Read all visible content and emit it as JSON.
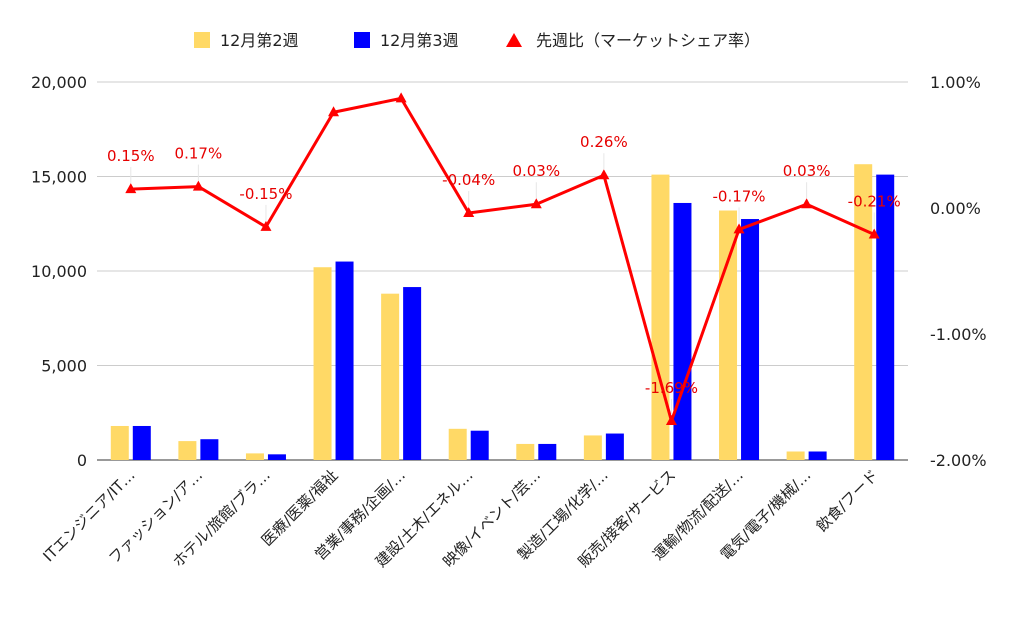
{
  "chart_data": {
    "type": "bar",
    "title": "",
    "xlabel": "",
    "ylabel": "",
    "legend": {
      "position": "top"
    },
    "grid": true,
    "categories": [
      "ITエンジニア/IT…",
      "ファッション/ア…",
      "ホテル/旅館/ブラ…",
      "医療/医薬/福祉",
      "営業/事務/企画/…",
      "建設/土木/エネル…",
      "映像/イベント/芸…",
      "製造/工場/化学/…",
      "販売/接客/サービス",
      "運輸/物流/配送/…",
      "電気/電子/機械/…",
      "飲食/フード"
    ],
    "series": [
      {
        "name": "12月第2週",
        "color": "#ffd966",
        "type": "bar",
        "values": [
          1800,
          1000,
          350,
          10200,
          8800,
          1650,
          850,
          1300,
          15100,
          13200,
          450,
          15650
        ]
      },
      {
        "name": "12月第3週",
        "color": "#0000ff",
        "type": "bar",
        "values": [
          1800,
          1100,
          300,
          10500,
          9150,
          1550,
          850,
          1400,
          13600,
          12750,
          450,
          15100
        ]
      },
      {
        "name": "先週比（マーケットシェア率）",
        "color": "#ff0000",
        "type": "line",
        "axis": "right",
        "values": [
          0.15,
          0.17,
          -0.15,
          0.76,
          0.87,
          -0.04,
          0.03,
          0.26,
          -1.69,
          -0.17,
          0.03,
          -0.21
        ],
        "labels": [
          "0.15%",
          "0.17%",
          "-0.15%",
          "",
          "",
          "-0.04%",
          "0.03%",
          "0.26%",
          "-1.69%",
          "-0.17%",
          "0.03%",
          "-0.21%"
        ]
      }
    ],
    "y_left": {
      "min": 0,
      "max": 20000,
      "ticks": [
        0,
        5000,
        10000,
        15000,
        20000
      ],
      "tick_labels": [
        "0",
        "5,000",
        "10,000",
        "15,000",
        "20,000"
      ]
    },
    "y_right": {
      "min": -2,
      "max": 1,
      "ticks": [
        -2,
        -1,
        0,
        1
      ],
      "tick_labels": [
        "-2.00%",
        "-1.00%",
        "0.00%",
        "1.00%"
      ]
    }
  }
}
